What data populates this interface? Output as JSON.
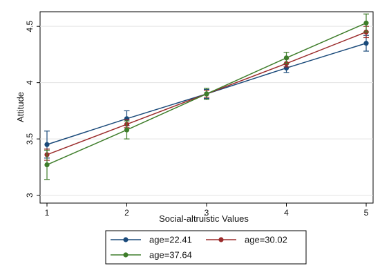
{
  "chart_data": {
    "type": "line",
    "title": "",
    "xlabel": "Social-altruistic Values",
    "ylabel": "Attitude",
    "x": [
      1,
      2,
      3,
      4,
      5
    ],
    "xlim": [
      1,
      5
    ],
    "ylim": [
      2.93,
      4.63
    ],
    "xticks": [
      "1",
      "2",
      "3",
      "4",
      "5"
    ],
    "yticks": [
      3,
      3.5,
      4,
      4.5
    ],
    "ytick_labels": [
      "3",
      "3.5",
      "4",
      "4.5"
    ],
    "grid": "horizontal",
    "legend_position": "bottom",
    "series": [
      {
        "name": "age=22.41",
        "color": "#1a4a7a",
        "values": [
          3.45,
          3.68,
          3.9,
          4.13,
          4.35
        ],
        "ci_low": [
          3.33,
          3.62,
          3.86,
          4.09,
          4.28
        ],
        "ci_high": [
          3.57,
          3.75,
          3.94,
          4.17,
          4.42
        ]
      },
      {
        "name": "age=30.02",
        "color": "#9b2c2c",
        "values": [
          3.36,
          3.63,
          3.9,
          4.17,
          4.45
        ],
        "ci_low": [
          3.31,
          3.6,
          3.87,
          4.14,
          4.4
        ],
        "ci_high": [
          3.41,
          3.67,
          3.93,
          4.21,
          4.5
        ]
      },
      {
        "name": "age=37.64",
        "color": "#3e7d2a",
        "values": [
          3.27,
          3.58,
          3.9,
          4.22,
          4.53
        ],
        "ci_low": [
          3.14,
          3.5,
          3.85,
          4.17,
          4.45
        ],
        "ci_high": [
          3.4,
          3.66,
          3.95,
          4.27,
          4.61
        ]
      }
    ]
  }
}
